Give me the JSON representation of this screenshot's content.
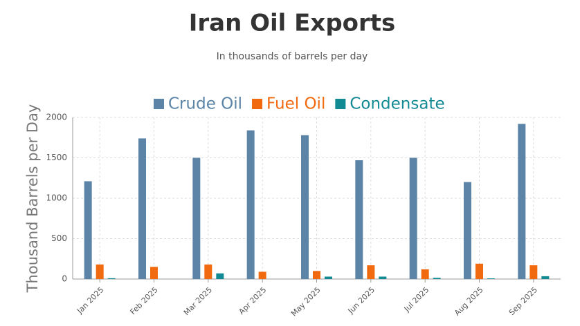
{
  "chart_data": {
    "type": "bar",
    "title": "Iran Oil Exports",
    "subtitle": "In thousands of barrels per day",
    "y_label": "Thousand Barrels per Day",
    "categories": [
      "Jan 2025",
      "Feb 2025",
      "Mar 2025",
      "Apr 2025",
      "May 2025",
      "Jun 2025",
      "Jul 2025",
      "Aug 2025",
      "Sep 2025"
    ],
    "series": [
      {
        "name": "Crude Oil",
        "color": "#5b84a6",
        "values": [
          1210,
          1740,
          1500,
          1840,
          1780,
          1470,
          1500,
          1200,
          1920
        ]
      },
      {
        "name": "Fuel Oil",
        "color": "#f26a10",
        "values": [
          180,
          150,
          180,
          90,
          100,
          170,
          120,
          190,
          170
        ]
      },
      {
        "name": "Condensate",
        "color": "#128a94",
        "values": [
          10,
          0,
          70,
          0,
          30,
          30,
          15,
          8,
          35
        ]
      }
    ],
    "ylim": [
      0,
      2000
    ],
    "yticks": [
      0,
      500,
      1000,
      1500,
      2000
    ],
    "grid": true,
    "legend": "top"
  }
}
